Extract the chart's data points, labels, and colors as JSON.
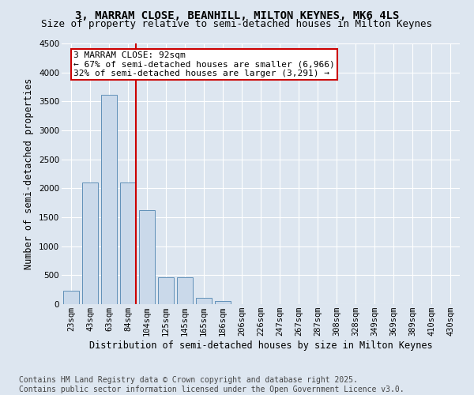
{
  "title_line1": "3, MARRAM CLOSE, BEANHILL, MILTON KEYNES, MK6 4LS",
  "title_line2": "Size of property relative to semi-detached houses in Milton Keynes",
  "xlabel": "Distribution of semi-detached houses by size in Milton Keynes",
  "ylabel": "Number of semi-detached properties",
  "categories": [
    "23sqm",
    "43sqm",
    "63sqm",
    "84sqm",
    "104sqm",
    "125sqm",
    "145sqm",
    "165sqm",
    "186sqm",
    "206sqm",
    "226sqm",
    "247sqm",
    "267sqm",
    "287sqm",
    "308sqm",
    "328sqm",
    "349sqm",
    "369sqm",
    "389sqm",
    "410sqm",
    "430sqm"
  ],
  "values": [
    230,
    2100,
    3620,
    2100,
    1620,
    460,
    460,
    110,
    60,
    0,
    0,
    0,
    0,
    0,
    0,
    0,
    0,
    0,
    0,
    0,
    0
  ],
  "bar_color": "#cad9ea",
  "bar_edge_color": "#6090b8",
  "vline_color": "#cc0000",
  "annotation_text": "3 MARRAM CLOSE: 92sqm\n← 67% of semi-detached houses are smaller (6,966)\n32% of semi-detached houses are larger (3,291) →",
  "annotation_box_color": "#cc0000",
  "ylim": [
    0,
    4500
  ],
  "yticks": [
    0,
    500,
    1000,
    1500,
    2000,
    2500,
    3000,
    3500,
    4000,
    4500
  ],
  "background_color": "#dde6f0",
  "plot_bg_color": "#dde6f0",
  "footer": "Contains HM Land Registry data © Crown copyright and database right 2025.\nContains public sector information licensed under the Open Government Licence v3.0.",
  "title_fontsize": 10,
  "subtitle_fontsize": 9,
  "axis_label_fontsize": 8.5,
  "tick_fontsize": 7.5,
  "annotation_fontsize": 8,
  "footer_fontsize": 7
}
